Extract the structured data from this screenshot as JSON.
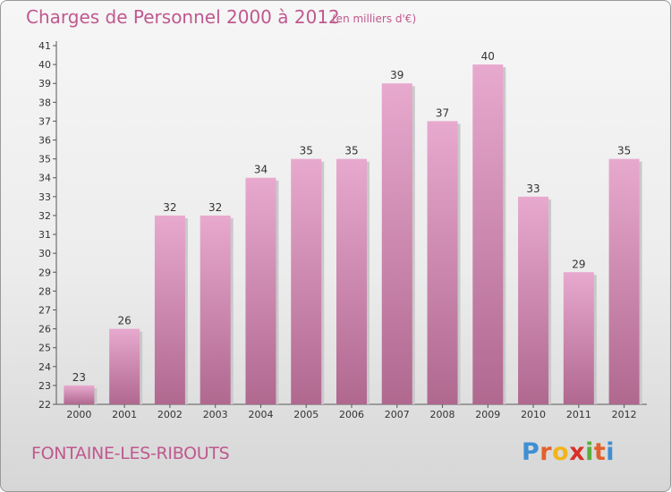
{
  "header": {
    "title": "Charges de Personnel 2000 à 2012",
    "subtitle": "(en milliers d'€)"
  },
  "footer": {
    "commune": "FONTAINE-LES-RIBOUTS",
    "logo_text": "Proxiti"
  },
  "colors": {
    "title": "#c0588f",
    "bar_top": "#e8a9cf",
    "bar_bottom": "#b0688f",
    "bar_shadow": "#c9c9c9"
  },
  "chart_data": {
    "type": "bar",
    "title": "Charges de Personnel 2000 à 2012",
    "subtitle": "(en milliers d'€)",
    "categories": [
      "2000",
      "2001",
      "2002",
      "2003",
      "2004",
      "2005",
      "2006",
      "2007",
      "2008",
      "2009",
      "2010",
      "2011",
      "2012"
    ],
    "values": [
      23,
      26,
      32,
      32,
      34,
      35,
      35,
      39,
      37,
      40,
      33,
      29,
      35
    ],
    "ylim": [
      22,
      41
    ],
    "yticks": [
      22,
      23,
      24,
      25,
      26,
      27,
      28,
      29,
      30,
      31,
      32,
      33,
      34,
      35,
      36,
      37,
      38,
      39,
      40,
      41
    ],
    "grid": false,
    "legend": "none"
  }
}
